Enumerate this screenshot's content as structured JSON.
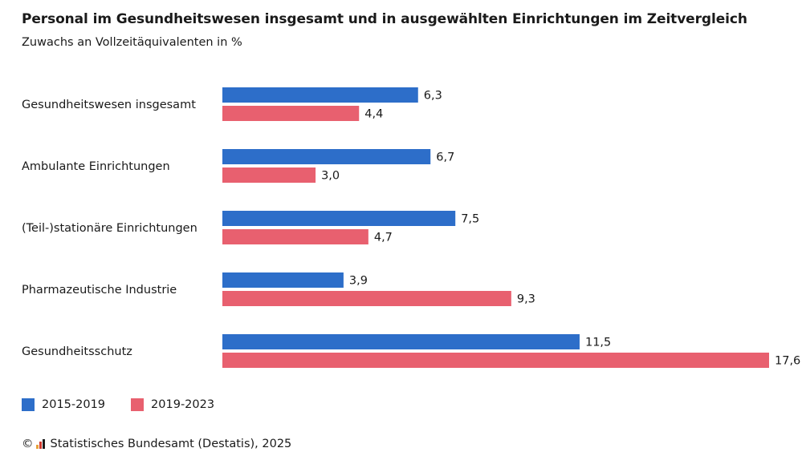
{
  "header": {
    "title": "Personal im Gesundheitswesen insgesamt und in ausgewählten Einrichtungen im Zeitvergleich",
    "subtitle": "Zuwachs an Vollzeitäquivalenten in %"
  },
  "colors": {
    "series_1": "#2d6ec9",
    "series_2": "#e8606f",
    "text": "#1a1a1a"
  },
  "chart_data": {
    "type": "bar",
    "orientation": "horizontal",
    "title": "Personal im Gesundheitswesen insgesamt und in ausgewählten Einrichtungen im Zeitvergleich",
    "subtitle": "Zuwachs an Vollzeitäquivalenten in %",
    "categories": [
      "Gesundheitswesen insgesamt",
      "Ambulante Einrichtungen",
      "(Teil-)stationäre Einrichtungen",
      "Pharmazeutische Industrie",
      "Gesundheitsschutz"
    ],
    "series": [
      {
        "name": "2015-2019",
        "values": [
          6.3,
          6.7,
          7.5,
          3.9,
          11.5
        ],
        "labels": [
          "6,3",
          "6,7",
          "7,5",
          "3,9",
          "11,5"
        ]
      },
      {
        "name": "2019-2023",
        "values": [
          4.4,
          3.0,
          4.7,
          9.3,
          17.6
        ],
        "labels": [
          "4,4",
          "3,0",
          "4,7",
          "9,3",
          "17,6"
        ]
      }
    ],
    "xlim": [
      0,
      17.6
    ],
    "grid": false,
    "legend": "bottom-left"
  },
  "legend": {
    "items": [
      "2015-2019",
      "2019-2023"
    ]
  },
  "footer": {
    "copyright": "©",
    "source": "Statistisches Bundesamt (Destatis), 2025"
  }
}
